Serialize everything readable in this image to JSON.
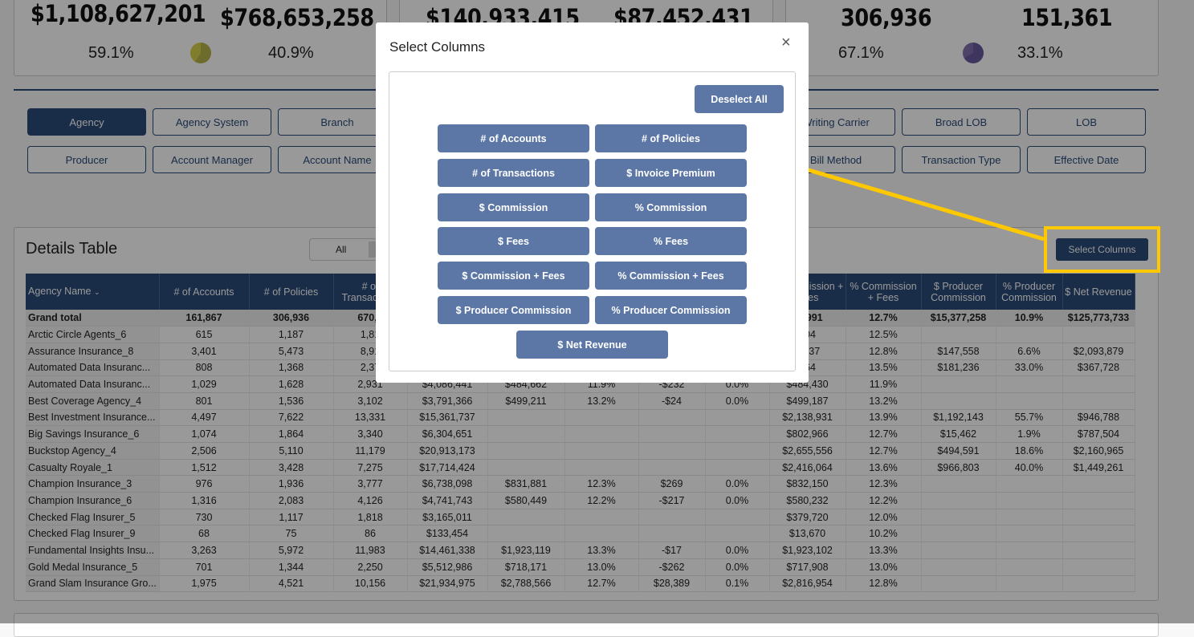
{
  "kpi_cards": [
    {
      "value_a": "$1,108,627,201",
      "value_b": "$768,653,258",
      "pct_a": "59.1%",
      "pct_b": "40.9%",
      "pie_color": "#d6d24a"
    },
    {
      "value_a": "$140,933,415",
      "value_b": "$87,452,431"
    },
    {
      "value_a": "306,936",
      "value_b": "151,361",
      "pct_a": "67.1%",
      "pct_b": "33.1%",
      "pie_color": "#6a5a9e"
    }
  ],
  "filters": {
    "row1": [
      "Agency",
      "Agency System",
      "Branch",
      "Writing Carrier",
      "Broad LOB",
      "LOB"
    ],
    "row2": [
      "Producer",
      "Account Manager",
      "Account Name",
      "Bill Method",
      "Transaction Type",
      "Effective Date"
    ],
    "active": "Agency"
  },
  "details": {
    "title": "Details Table",
    "toggle_label": "All",
    "select_columns_label": "Select Columns",
    "columns": [
      "Agency Name",
      "# of Accounts",
      "# of Policies",
      "# of Transactions",
      "$ Invoice Premium",
      "$ Commission",
      "% Commission",
      "$ Fees",
      "% Fees",
      "$ Commission + Fees",
      "% Commission + Fees",
      "$ Producer Commission",
      "% Producer Commission",
      "$ Net Revenue"
    ],
    "total": [
      "Grand total",
      "161,867",
      "306,936",
      "670,9",
      "",
      "",
      "",
      "",
      "",
      "50,991",
      "12.7%",
      "$15,377,258",
      "10.9%",
      "$125,773,733"
    ],
    "rows": [
      [
        "Arctic Circle Agents_6",
        "615",
        "1,187",
        "1,81",
        "",
        "",
        "",
        "",
        "",
        "004",
        "12.5%",
        "",
        "",
        ""
      ],
      [
        "Assurance Insurance_8",
        "3,401",
        "5,473",
        "8,91",
        "",
        "",
        "",
        "",
        "",
        "1,437",
        "12.8%",
        "$147,558",
        "6.6%",
        "$2,093,879"
      ],
      [
        "Automated Data Insuranc...",
        "808",
        "1,368",
        "2,37",
        "",
        "",
        "",
        "",
        "",
        "964",
        "13.5%",
        "$181,236",
        "33.0%",
        "$367,728"
      ],
      [
        "Automated Data Insuranc...",
        "1,029",
        "1,628",
        "2,931",
        "$4,086,441",
        "$484,662",
        "11.9%",
        "-$232",
        "0.0%",
        "$484,430",
        "11.9%",
        "",
        "",
        ""
      ],
      [
        "Best Coverage Agency_4",
        "801",
        "1,536",
        "3,102",
        "$3,791,366",
        "$499,211",
        "13.2%",
        "-$24",
        "0.0%",
        "$499,187",
        "13.2%",
        "",
        "",
        ""
      ],
      [
        "Best Investment Insurance...",
        "4,497",
        "7,622",
        "13,331",
        "$15,361,737",
        "",
        "",
        "",
        "",
        "$2,138,931",
        "13.9%",
        "$1,192,143",
        "55.7%",
        "$946,788"
      ],
      [
        "Big Savings Insurance_6",
        "1,074",
        "1,864",
        "3,340",
        "$6,304,651",
        "",
        "",
        "",
        "",
        "$802,966",
        "12.7%",
        "$15,462",
        "1.9%",
        "$787,504"
      ],
      [
        "Buckstop Agency_4",
        "2,506",
        "5,110",
        "11,179",
        "$20,913,173",
        "",
        "",
        "",
        "",
        "$2,655,556",
        "12.7%",
        "$494,591",
        "18.6%",
        "$2,160,965"
      ],
      [
        "Casualty Royale_1",
        "1,512",
        "3,428",
        "7,275",
        "$17,714,424",
        "",
        "",
        "",
        "",
        "$2,416,064",
        "13.6%",
        "$966,803",
        "40.0%",
        "$1,449,261"
      ],
      [
        "Champion Insurance_3",
        "976",
        "1,936",
        "3,777",
        "$6,738,098",
        "$831,881",
        "12.3%",
        "$269",
        "0.0%",
        "$832,150",
        "12.3%",
        "",
        "",
        ""
      ],
      [
        "Champion Insurance_6",
        "1,316",
        "2,083",
        "4,126",
        "$4,741,743",
        "$580,449",
        "12.2%",
        "-$217",
        "0.0%",
        "$580,232",
        "12.2%",
        "",
        "",
        ""
      ],
      [
        "Checked Flag Insurer_5",
        "730",
        "1,117",
        "1,818",
        "$3,165,011",
        "",
        "",
        "",
        "",
        "$379,720",
        "12.0%",
        "",
        "",
        ""
      ],
      [
        "Checked Flag Insurer_9",
        "68",
        "75",
        "86",
        "$133,454",
        "",
        "",
        "",
        "",
        "$13,670",
        "10.2%",
        "",
        "",
        ""
      ],
      [
        "Fundamental Insights Insu...",
        "3,263",
        "5,972",
        "11,983",
        "$14,461,338",
        "$1,923,119",
        "13.3%",
        "-$17",
        "0.0%",
        "$1,923,102",
        "13.3%",
        "",
        "",
        ""
      ],
      [
        "Gold Medal Insurance_5",
        "701",
        "1,344",
        "2,250",
        "$5,512,986",
        "$718,171",
        "13.0%",
        "-$262",
        "0.0%",
        "$717,908",
        "13.0%",
        "",
        "",
        ""
      ],
      [
        "Grand Slam Insurance Gro...",
        "1,975",
        "4,521",
        "10,156",
        "$21,934,975",
        "$2,788,566",
        "12.7%",
        "$28,389",
        "0.1%",
        "$2,816,954",
        "12.8%",
        "",
        "",
        ""
      ]
    ]
  },
  "modal": {
    "title": "Select Columns",
    "close_icon": "×",
    "deselect_all": "Deselect All",
    "options": [
      "# of Accounts",
      "# of Policies",
      "# of Transactions",
      "$ Invoice Premium",
      "$ Commission",
      "% Commission",
      "$ Fees",
      "% Fees",
      "$ Commission + Fees",
      "% Commission + Fees",
      "$ Producer Commission",
      "% Producer Commission",
      "$ Net Revenue"
    ]
  },
  "colors": {
    "primary": "#2a4a78",
    "modal_button": "#5c77a6",
    "highlight": "#ffc800"
  }
}
